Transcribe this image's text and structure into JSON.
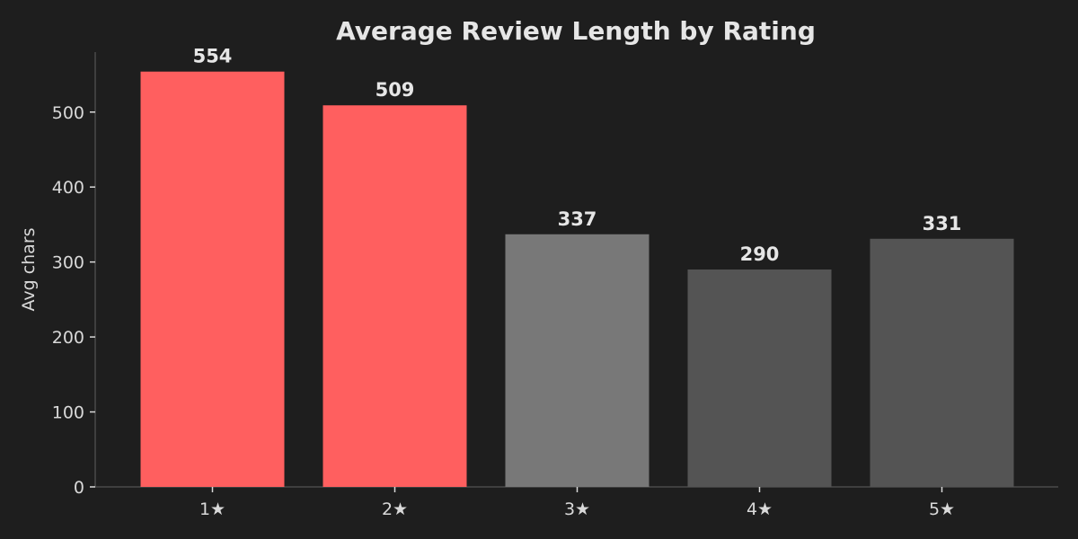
{
  "chart_data": {
    "type": "bar",
    "title": "Average Review Length by Rating",
    "xlabel": "",
    "ylabel": "Avg chars",
    "categories": [
      "1★",
      "2★",
      "3★",
      "4★",
      "5★"
    ],
    "values": [
      554,
      509,
      337,
      290,
      331
    ],
    "data_labels": [
      "554",
      "509",
      "337",
      "290",
      "331"
    ],
    "bar_colors": [
      "#ff5f5f",
      "#ff5f5f",
      "#787878",
      "#545454",
      "#545454"
    ],
    "ylim": [
      0,
      580
    ],
    "yticks": [
      0,
      100,
      200,
      300,
      400,
      500
    ],
    "ytick_labels": [
      "0",
      "100",
      "200",
      "300",
      "400",
      "500"
    ],
    "grid": false,
    "legend": "none",
    "background_color": "#1e1e1e"
  }
}
